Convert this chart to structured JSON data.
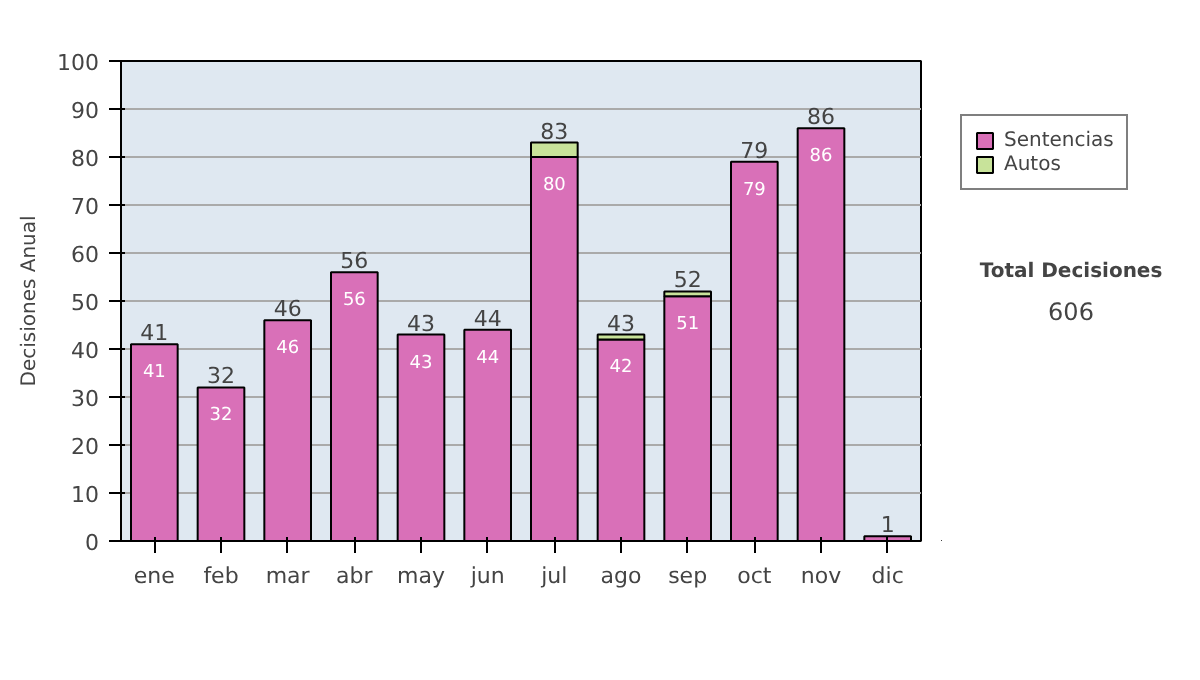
{
  "chart_data": {
    "type": "bar",
    "stacked": true,
    "ylabel": "Decisiones Anual",
    "categories": [
      "ene",
      "feb",
      "mar",
      "abr",
      "may",
      "jun",
      "jul",
      "ago",
      "sep",
      "oct",
      "nov",
      "dic"
    ],
    "series": [
      {
        "name": "Sentencias",
        "color": "#d970b8",
        "values": [
          41,
          32,
          46,
          56,
          43,
          44,
          80,
          42,
          51,
          79,
          86,
          1
        ],
        "value_labels": [
          "41",
          "32",
          "46",
          "56",
          "43",
          "44",
          "80",
          "42",
          "51",
          "79",
          "86",
          null
        ]
      },
      {
        "name": "Autos",
        "color": "#c8e39a",
        "values": [
          null,
          null,
          null,
          null,
          null,
          null,
          3,
          1,
          1,
          null,
          null,
          null
        ]
      }
    ],
    "totals": [
      "41",
      "32",
      "46",
      "56",
      "43",
      "44",
      "83",
      "43",
      "52",
      "79",
      "86",
      "1"
    ],
    "ylim": [
      0,
      100
    ],
    "yticks": [
      0,
      10,
      20,
      30,
      40,
      50,
      60,
      70,
      80,
      90,
      100
    ],
    "grid": "y",
    "legend": "right",
    "annotations": [
      "Total Decisiones",
      "606"
    ]
  }
}
